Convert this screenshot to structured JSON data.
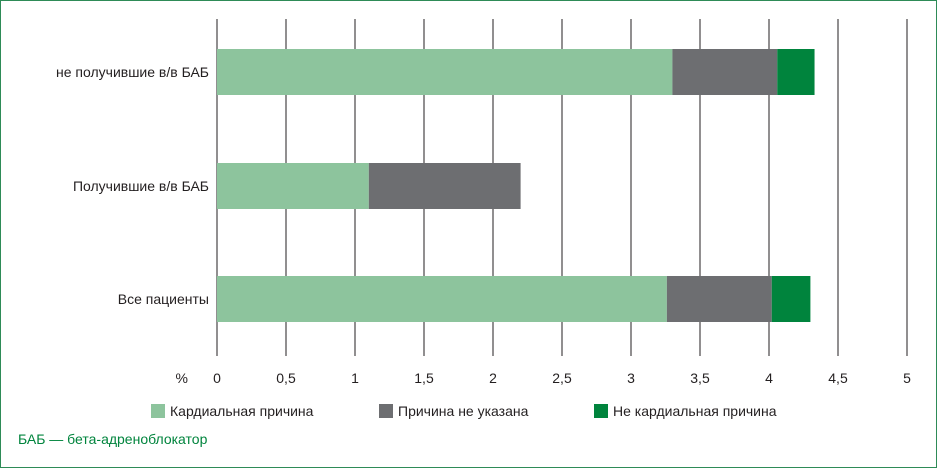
{
  "chart_data": {
    "type": "bar",
    "orientation": "horizontal",
    "stacked": true,
    "categories": [
      "не получившие в/в БАБ",
      "Получившие в/в БАБ",
      "Все пациенты"
    ],
    "series": [
      {
        "name": "Кардиальная причина",
        "values": [
          3.3,
          1.1,
          3.26
        ],
        "color": "#8dc49d"
      },
      {
        "name": "Причина не указана",
        "values": [
          0.76,
          1.1,
          0.76
        ],
        "color": "#6d6e71"
      },
      {
        "name": "Не кардиальная причина",
        "values": [
          0.27,
          0,
          0.28
        ],
        "color": "#00843d"
      }
    ],
    "xlabel": "%",
    "xlim": [
      0,
      5
    ],
    "xticks": [
      "0",
      "0,5",
      "1",
      "1,5",
      "2",
      "2,5",
      "3",
      "3,5",
      "4",
      "4,5",
      "5"
    ],
    "grid": true,
    "legend_position": "bottom"
  },
  "footnote": "БАБ — бета-адреноблокатор",
  "colors": {
    "frame": "#2e8b57",
    "footnote": "#00843d",
    "grid": "#231f20"
  }
}
